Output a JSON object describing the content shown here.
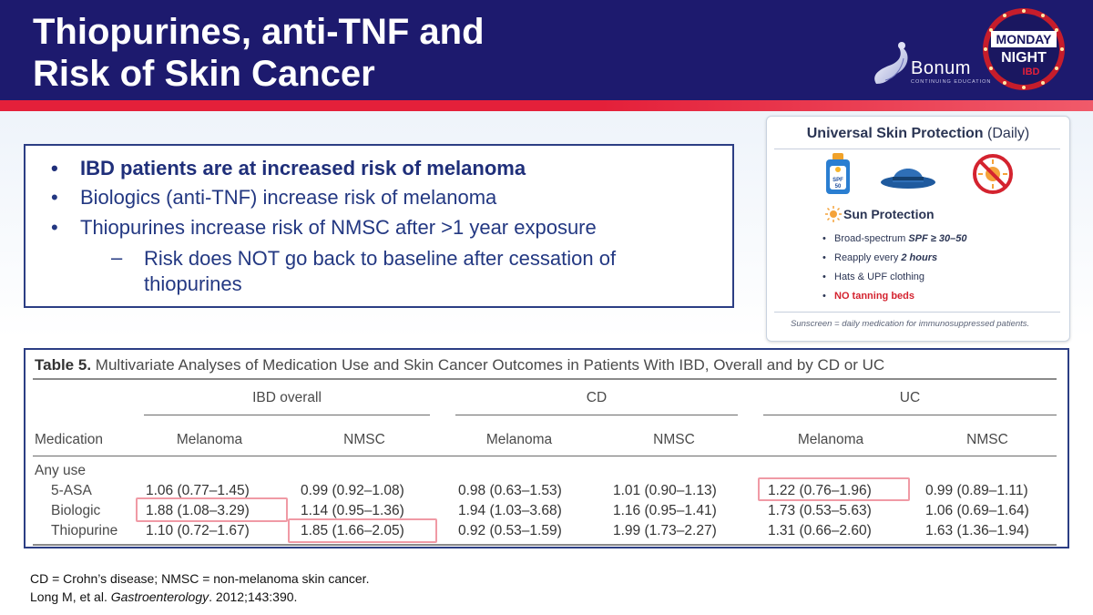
{
  "header": {
    "title_line1": "Thiopurines, anti-TNF and",
    "title_line2": "Risk of Skin Cancer",
    "logo_bonum": "Bonum",
    "logo_bonum_sub": "CONTINUING EDUCATION",
    "logo_monday_night": "MONDAY NIGHT IBD",
    "colors": {
      "header_bg": "#1d1a6e",
      "stripe": "#e4203a"
    }
  },
  "bullets": [
    {
      "text": "IBD patients are at increased risk of melanoma",
      "bold": true
    },
    {
      "text": "Biologics (anti-TNF) increase risk of melanoma"
    },
    {
      "text": "Thiopurines increase risk of NMSC after >1 year exposure"
    },
    {
      "text": "Risk does NOT go back to baseline after cessation of thiopurines",
      "level": 2
    }
  ],
  "bullet_glyph": "•",
  "sub_bullet_glyph": "–",
  "skin_card": {
    "title_bold": "Universal Skin Protection",
    "title_light": "(Daily)",
    "icons": [
      "sunscreen-bottle-icon",
      "sun-hat-icon",
      "no-tanning-icon"
    ],
    "spf_label_1": "SPF",
    "spf_label_2": "50",
    "section_title": "Sun Protection",
    "items": [
      {
        "pre": "Broad-spectrum ",
        "hl": "SPF ≥ 30–50",
        "post": ""
      },
      {
        "pre": "Reapply every ",
        "hl": "2 hours",
        "post": ""
      },
      {
        "pre": "Hats & UPF clothing",
        "hl": "",
        "post": ""
      },
      {
        "pre": "",
        "red": "NO tanning beds"
      }
    ],
    "footer": "Sunscreen = daily medication for immunosuppressed patients."
  },
  "table": {
    "caption_bold": "Table 5.",
    "caption_text": "Multivariate Analyses of Medication Use and Skin Cancer Outcomes in Patients With IBD, Overall and by CD or UC",
    "groups": [
      "IBD overall",
      "CD",
      "UC"
    ],
    "col_medication": "Medication",
    "subcols": [
      "Melanoma",
      "NMSC",
      "Melanoma",
      "NMSC",
      "Melanoma",
      "NMSC"
    ],
    "any_use": "Any use",
    "rows": [
      {
        "label": "5-ASA",
        "values": [
          "1.06 (0.77–1.45)",
          "0.99 (0.92–1.08)",
          "0.98 (0.63–1.53)",
          "1.01 (0.90–1.13)",
          "1.22 (0.76–1.96)",
          "0.99 (0.89–1.11)"
        ]
      },
      {
        "label": "Biologic",
        "values": [
          "1.88 (1.08–3.29)",
          "1.14 (0.95–1.36)",
          "1.94 (1.03–3.68)",
          "1.16 (0.95–1.41)",
          "1.73 (0.53–5.63)",
          "1.06 (0.69–1.64)"
        ]
      },
      {
        "label": "Thiopurine",
        "values": [
          "1.10 (0.72–1.67)",
          "1.85 (1.66–2.05)",
          "0.92 (0.53–1.59)",
          "1.99 (1.73–2.27)",
          "1.31 (0.66–2.60)",
          "1.63 (1.36–1.94)"
        ]
      }
    ],
    "highlight_color": "#f09aa5"
  },
  "footnotes": {
    "line1": "CD = Crohn’s disease; NMSC = non-melanoma skin cancer.",
    "line2_pre": "Long M, et al. ",
    "line2_journal": "Gastroenterology",
    "line2_post": ". 2012;143:390."
  }
}
